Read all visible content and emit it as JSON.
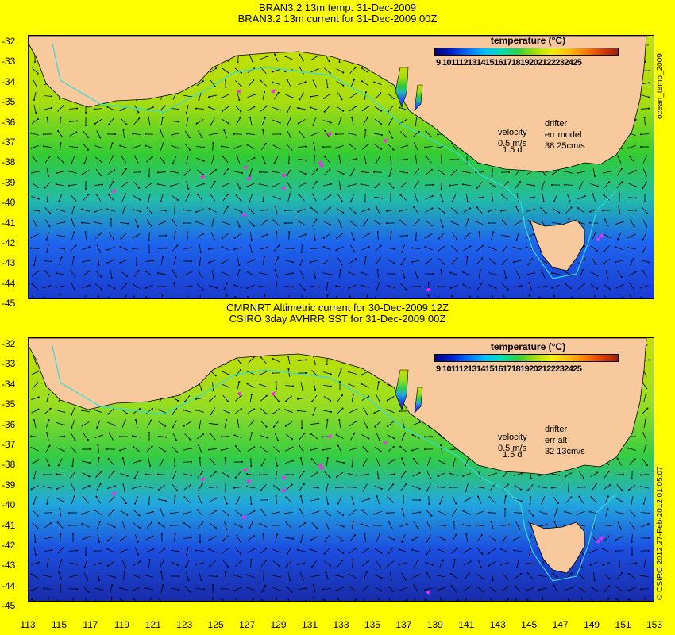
{
  "top": {
    "title_line1": "BRAN3.2 13m temp. 31-Dec-2009",
    "title_line2": "BRAN3.2 13m current for 31-Dec-2009 00Z",
    "colorbar_title": "temperature (°C)",
    "colorbar_labels": "9 10111213141516171819202122232425",
    "velocity_label": "velocity",
    "velocity_value": "0.5 m/s",
    "velocity_sub": "1.5 d",
    "drifter_label": "drifter",
    "err_label": "err model",
    "err_value": "38 25cm/s",
    "side_label": "ocean_temp_2009"
  },
  "bottom": {
    "title_line1": "CMRNRT Altimetric current for 30-Dec-2009 12Z",
    "title_line2": "CSIRO 3day AVHRR SST for 31-Dec-2009 00Z",
    "colorbar_title": "temperature (°C)",
    "colorbar_labels": "9 10111213141516171819202122232425",
    "velocity_label": "velocity",
    "velocity_value": "0.5 m/s",
    "velocity_sub": "1.5 d",
    "drifter_label": "drifter",
    "err_label": "err alt",
    "err_value": "32 13cm/s",
    "side_label": "© CSIRO 2012   27-Feb-2012 01:05:07"
  },
  "axes": {
    "lat_ticks": [
      "-32",
      "-33",
      "-34",
      "-35",
      "-36",
      "-37",
      "-38",
      "-39",
      "-40",
      "-41",
      "-42",
      "-43",
      "-44",
      "-45"
    ],
    "lon_ticks": [
      "113",
      "115",
      "117",
      "119",
      "121",
      "123",
      "125",
      "127",
      "129",
      "131",
      "133",
      "135",
      "137",
      "139",
      "141",
      "143",
      "145",
      "147",
      "149",
      "151",
      "153"
    ],
    "lat_range": [
      -45,
      -31.5
    ],
    "lon_range": [
      113,
      153
    ]
  },
  "colors": {
    "land": "#f7c99c",
    "coast_cyan": "#33dddd",
    "drifter": "#ff22ff",
    "background": "#ffff00"
  }
}
